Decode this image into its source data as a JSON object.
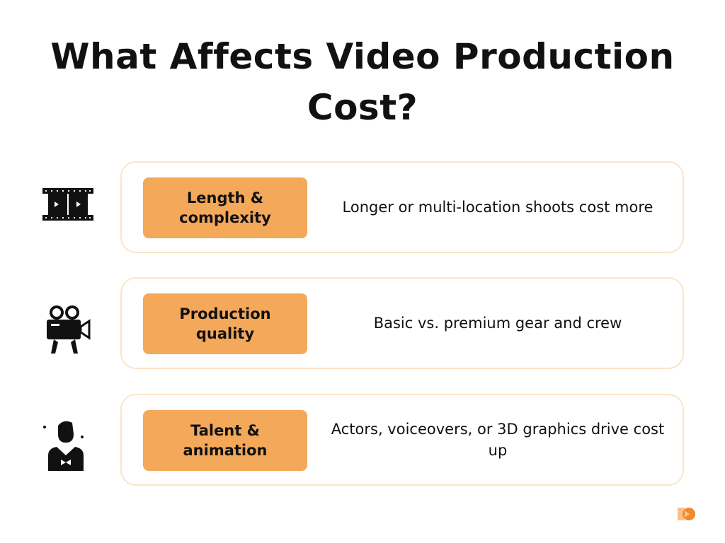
{
  "title": "What Affects Video Production Cost?",
  "accent_color": "#f4a85a",
  "border_color": "#fbe4c8",
  "factors": [
    {
      "icon": "film-strip-icon",
      "label": "Length & complexity",
      "description": "Longer or multi-location shoots cost more"
    },
    {
      "icon": "movie-camera-icon",
      "label": "Production quality",
      "description": "Basic vs. premium gear and crew"
    },
    {
      "icon": "actor-icon",
      "label": "Talent & animation",
      "description": "Actors, voiceovers, or 3D graphics drive cost up"
    }
  ],
  "logo": "brand-logo"
}
